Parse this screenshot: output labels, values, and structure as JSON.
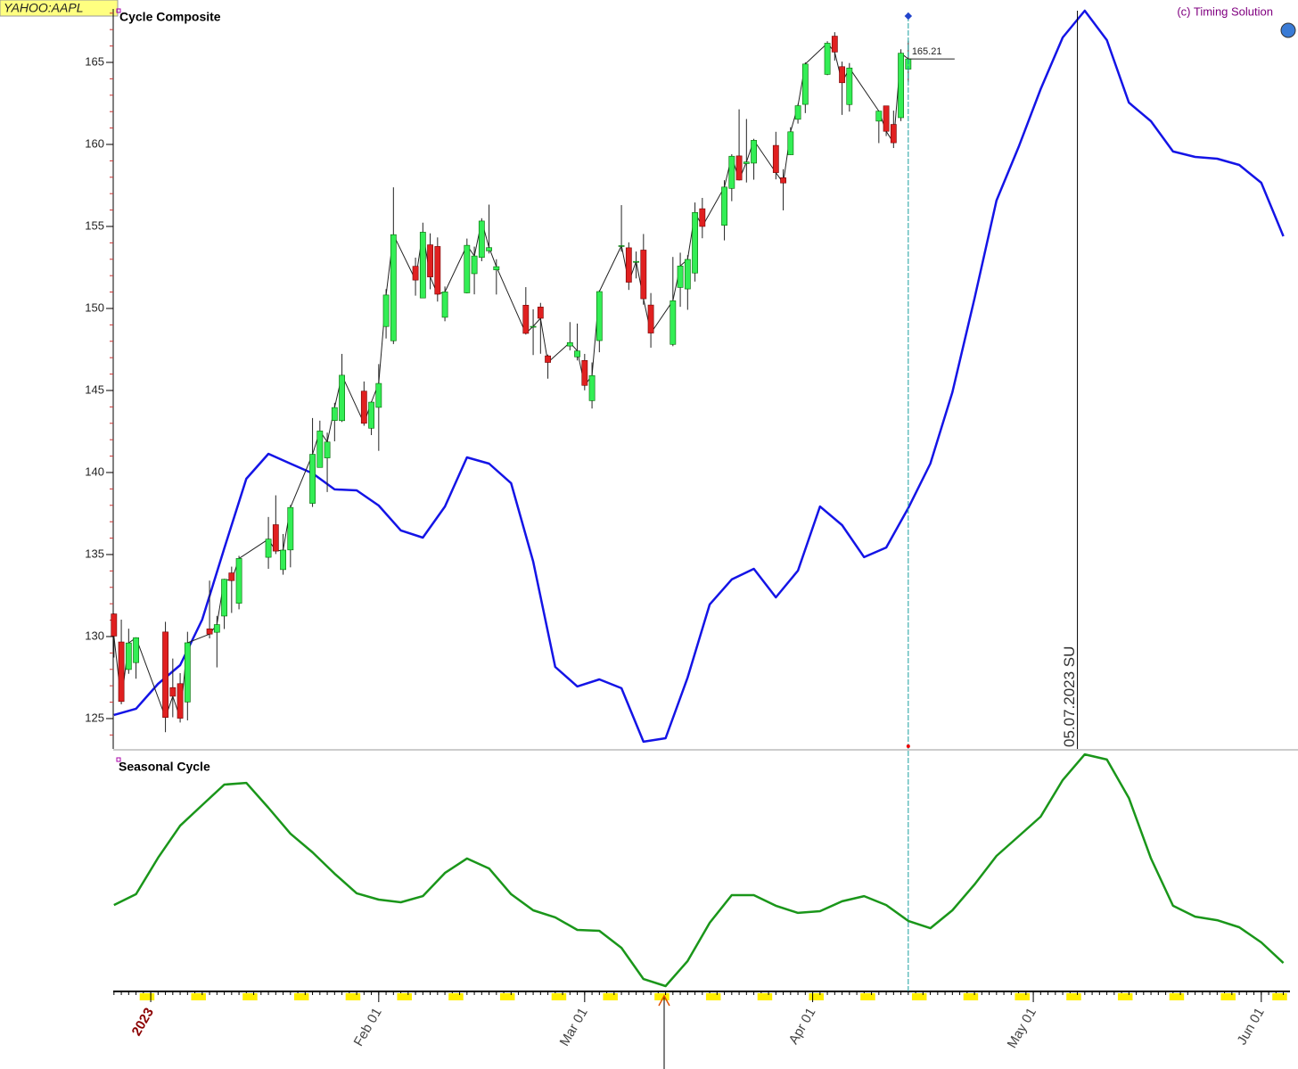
{
  "header": {
    "symbol": "YAHOO:AAPL",
    "copyright": "(c) Timing Solution"
  },
  "chart_data": [
    {
      "type": "candlestick",
      "title": "Cycle Composite",
      "x": [
        -4,
        -3,
        -2,
        -1,
        3,
        4,
        5,
        6,
        9,
        10,
        11,
        12,
        13,
        17,
        18,
        19,
        20,
        23,
        24,
        25,
        26,
        27,
        30,
        31,
        32,
        33,
        34,
        37,
        38,
        39,
        40,
        41,
        44,
        45,
        46,
        47,
        48,
        52,
        53,
        54,
        55,
        58,
        59,
        60,
        61,
        62,
        65,
        66,
        67,
        68,
        69,
        72,
        73,
        74,
        75,
        76,
        79,
        80,
        81,
        82,
        83,
        86,
        87,
        88,
        89,
        90,
        93,
        94,
        95,
        96,
        100,
        101,
        102,
        103,
        104
      ],
      "open": [
        131.38,
        129.67,
        127.99,
        128.41,
        130.28,
        126.89,
        127.13,
        126.01,
        130.47,
        130.26,
        131.25,
        133.88,
        132.03,
        134.83,
        136.82,
        134.08,
        135.28,
        138.12,
        140.31,
        140.89,
        143.17,
        143.16,
        144.96,
        142.7,
        143.97,
        148.9,
        148.03,
        152.57,
        150.64,
        153.88,
        153.78,
        149.46,
        150.95,
        152.12,
        153.11,
        153.51,
        152.35,
        150.2,
        148.87,
        150.09,
        147.11,
        147.71,
        147.05,
        146.83,
        144.38,
        148.04,
        153.79,
        153.7,
        152.81,
        153.56,
        150.21,
        147.81,
        151.28,
        151.19,
        152.16,
        156.08,
        155.07,
        157.32,
        159.3,
        158.83,
        158.86,
        159.94,
        157.97,
        159.37,
        161.53,
        162.44,
        164.27,
        166.6,
        164.74,
        162.43,
        161.42,
        162.35,
        161.22,
        161.63,
        164.59
      ],
      "high": [
        131.41,
        131.03,
        130.48,
        129.95,
        130.9,
        128.66,
        127.77,
        130.29,
        133.41,
        131.26,
        133.51,
        134.26,
        134.92,
        137.29,
        138.61,
        136.25,
        138.02,
        143.32,
        143.16,
        142.43,
        144.25,
        147.23,
        145.55,
        144.34,
        146.61,
        151.18,
        157.38,
        153.1,
        155.23,
        154.58,
        154.33,
        151.34,
        154.26,
        153.77,
        155.5,
        156.33,
        153.0,
        151.3,
        149.95,
        150.34,
        147.19,
        149.17,
        149.08,
        147.23,
        146.71,
        151.11,
        156.3,
        154.03,
        153.47,
        154.54,
        150.94,
        153.14,
        153.4,
        153.25,
        156.46,
        156.74,
        157.82,
        159.4,
        162.14,
        161.55,
        160.34,
        160.77,
        158.49,
        161.05,
        162.47,
        165.0,
        166.29,
        166.84,
        165.05,
        164.96,
        162.03,
        162.36,
        162.06,
        165.8,
        166.32
      ],
      "low": [
        128.72,
        125.87,
        127.73,
        127.43,
        124.17,
        125.08,
        124.76,
        124.89,
        129.89,
        128.12,
        130.46,
        131.44,
        131.66,
        134.13,
        135.03,
        133.77,
        134.22,
        137.9,
        140.3,
        138.81,
        141.9,
        143.08,
        142.85,
        142.28,
        141.32,
        148.17,
        147.83,
        150.78,
        150.64,
        151.17,
        150.42,
        149.22,
        150.92,
        150.86,
        152.88,
        153.35,
        150.85,
        148.41,
        147.16,
        147.24,
        145.72,
        147.45,
        146.83,
        145.01,
        143.9,
        147.33,
        153.46,
        151.13,
        151.83,
        150.23,
        147.61,
        147.7,
        150.1,
        149.92,
        151.64,
        154.28,
        154.15,
        156.54,
        157.81,
        157.68,
        157.85,
        157.87,
        155.98,
        159.35,
        161.27,
        161.91,
        164.22,
        165.11,
        161.8,
        162.0,
        160.08,
        160.51,
        159.78,
        161.42,
        163.82
      ],
      "close": [
        130.03,
        126.04,
        129.61,
        129.93,
        125.07,
        126.36,
        125.02,
        129.62,
        130.15,
        130.73,
        133.49,
        133.41,
        134.76,
        135.94,
        135.21,
        135.27,
        137.87,
        141.11,
        142.53,
        141.86,
        143.96,
        145.93,
        143.0,
        144.29,
        145.43,
        150.82,
        154.5,
        151.73,
        154.65,
        151.92,
        150.87,
        151.01,
        153.85,
        153.2,
        155.33,
        153.71,
        152.55,
        148.48,
        148.91,
        149.4,
        146.71,
        147.92,
        147.41,
        145.31,
        145.91,
        151.03,
        153.83,
        151.6,
        152.87,
        150.59,
        148.5,
        150.47,
        152.59,
        152.99,
        155.85,
        155.0,
        157.4,
        159.28,
        157.83,
        158.93,
        160.25,
        158.28,
        157.65,
        160.77,
        162.36,
        164.9,
        166.17,
        165.63,
        163.76,
        164.66,
        162.03,
        160.8,
        160.1,
        165.56,
        165.21
      ],
      "up_color": "#33ee55",
      "down_color": "#e02020",
      "projection": {
        "color": "#1414e6",
        "x": [
          -4,
          -1,
          2,
          5,
          8,
          11,
          14,
          17,
          20,
          23,
          26,
          29,
          32,
          35,
          38,
          41,
          44,
          47,
          50,
          53,
          56,
          59,
          62,
          65,
          68,
          71,
          74,
          77,
          80,
          83,
          86,
          89,
          92,
          95,
          98,
          101,
          104,
          107,
          110,
          113,
          116,
          119,
          122,
          125,
          128,
          131,
          134,
          137,
          140,
          143,
          146,
          149,
          152,
          155
        ],
        "values": [
          125.22,
          125.6,
          127.12,
          128.26,
          131.03,
          135.38,
          139.62,
          141.14,
          140.54,
          139.95,
          138.97,
          138.91,
          137.99,
          136.47,
          136.03,
          137.93,
          140.92,
          140.54,
          139.35,
          134.57,
          128.15,
          126.96,
          127.39,
          126.85,
          123.59,
          123.8,
          127.5,
          131.96,
          133.48,
          134.13,
          132.39,
          134.02,
          137.93,
          136.79,
          134.84,
          135.43,
          137.83,
          140.54,
          144.89,
          150.6,
          156.58,
          159.84,
          163.37,
          166.52,
          168.15,
          166.36,
          162.55,
          161.41,
          159.57,
          159.24,
          159.13,
          158.75,
          157.66,
          154.4
        ]
      },
      "cycle_top": {
        "x": 127,
        "label": "05.07.2023 SU"
      },
      "xlim": [
        -4.1,
        155.9
      ],
      "ylim": [
        123.15,
        168.26
      ],
      "yticks": [
        125,
        130,
        135,
        140,
        145,
        150,
        155,
        160,
        165
      ]
    },
    {
      "type": "line",
      "title": "Seasonal Cycle",
      "color": "#1a961a",
      "x": [
        -4,
        -1,
        2,
        5,
        8,
        11,
        14,
        17,
        20,
        23,
        26,
        29,
        32,
        35,
        38,
        41,
        44,
        47,
        50,
        53,
        56,
        59,
        62,
        65,
        68,
        71,
        74,
        77,
        80,
        83,
        86,
        89,
        92,
        95,
        98,
        101,
        104,
        107,
        110,
        113,
        116,
        119,
        122,
        125,
        128,
        131,
        134,
        137,
        140,
        143,
        146,
        149,
        152,
        155
      ],
      "values": [
        0.358,
        0.404,
        0.558,
        0.694,
        0.781,
        0.868,
        0.875,
        0.77,
        0.66,
        0.581,
        0.491,
        0.408,
        0.381,
        0.37,
        0.396,
        0.494,
        0.555,
        0.513,
        0.404,
        0.336,
        0.306,
        0.253,
        0.249,
        0.177,
        0.045,
        0.015,
        0.121,
        0.283,
        0.4,
        0.4,
        0.355,
        0.325,
        0.332,
        0.374,
        0.396,
        0.358,
        0.291,
        0.26,
        0.336,
        0.445,
        0.566,
        0.649,
        0.732,
        0.887,
        0.996,
        0.974,
        0.811,
        0.555,
        0.355,
        0.309,
        0.294,
        0.264,
        0.2,
        0.113
      ],
      "xlim": [
        -4.1,
        155.9
      ],
      "ylim": [
        0,
        1
      ],
      "xticks": [
        {
          "value": 1,
          "label": "2023"
        },
        {
          "value": 32,
          "label": "Feb 01"
        },
        {
          "value": 60,
          "label": "Mar 01"
        },
        {
          "value": 91,
          "label": "Apr 01"
        },
        {
          "value": 121,
          "label": "May 01"
        },
        {
          "value": 152,
          "label": "Jun 01"
        }
      ]
    }
  ]
}
